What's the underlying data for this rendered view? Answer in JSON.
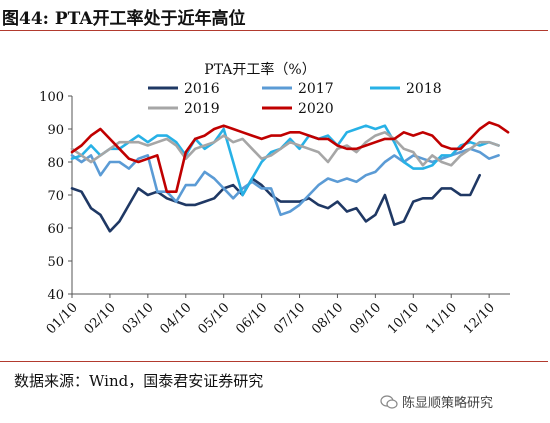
{
  "figure_title": "图44: PTA开工率处于近年高位",
  "source_note": "数据来源：Wind，国泰君安证券研究",
  "watermark": "陈显顺策略研究",
  "colors": {
    "accent_rule": "#b23a2e"
  },
  "chart_data": {
    "type": "line",
    "title": "PTA开工率（%）",
    "xlabel": "",
    "ylabel": "",
    "ylim": [
      40,
      100
    ],
    "yticks": [
      40,
      50,
      60,
      70,
      80,
      90,
      100
    ],
    "x_ticks": [
      "01/10",
      "02/10",
      "03/10",
      "04/10",
      "05/10",
      "06/10",
      "07/10",
      "08/10",
      "09/10",
      "10/10",
      "11/10",
      "12/10"
    ],
    "grid": false,
    "legend_position": "top",
    "series": [
      {
        "name": "2016",
        "color": "#1f3864",
        "values": [
          [
            0,
            72
          ],
          [
            0.25,
            71
          ],
          [
            0.5,
            66
          ],
          [
            0.75,
            64
          ],
          [
            1,
            59
          ],
          [
            1.25,
            62
          ],
          [
            1.5,
            67
          ],
          [
            1.75,
            72
          ],
          [
            2,
            70
          ],
          [
            2.25,
            71
          ],
          [
            2.5,
            69
          ],
          [
            2.75,
            68
          ],
          [
            3,
            67
          ],
          [
            3.25,
            67
          ],
          [
            3.5,
            68
          ],
          [
            3.75,
            69
          ],
          [
            4,
            72
          ],
          [
            4.25,
            73
          ],
          [
            4.5,
            70
          ],
          [
            4.75,
            75
          ],
          [
            5,
            73
          ],
          [
            5.25,
            70
          ],
          [
            5.5,
            68
          ],
          [
            5.75,
            68
          ],
          [
            6,
            68
          ],
          [
            6.25,
            69
          ],
          [
            6.5,
            67
          ],
          [
            6.75,
            66
          ],
          [
            7,
            68
          ],
          [
            7.25,
            65
          ],
          [
            7.5,
            66
          ],
          [
            7.75,
            62
          ],
          [
            8,
            64
          ],
          [
            8.25,
            70
          ],
          [
            8.5,
            61
          ],
          [
            8.75,
            62
          ],
          [
            9,
            68
          ],
          [
            9.25,
            69
          ],
          [
            9.5,
            69
          ],
          [
            9.75,
            72
          ],
          [
            10,
            72
          ],
          [
            10.25,
            70
          ],
          [
            10.5,
            70
          ],
          [
            10.75,
            76
          ]
        ]
      },
      {
        "name": "2017",
        "color": "#5b9bd5",
        "values": [
          [
            0,
            82
          ],
          [
            0.25,
            80
          ],
          [
            0.5,
            82
          ],
          [
            0.75,
            76
          ],
          [
            1,
            80
          ],
          [
            1.25,
            80
          ],
          [
            1.5,
            78
          ],
          [
            1.75,
            81
          ],
          [
            2,
            82
          ],
          [
            2.25,
            71
          ],
          [
            2.5,
            71
          ],
          [
            2.75,
            68
          ],
          [
            3,
            73
          ],
          [
            3.25,
            73
          ],
          [
            3.5,
            77
          ],
          [
            3.75,
            75
          ],
          [
            4,
            72
          ],
          [
            4.25,
            69
          ],
          [
            4.5,
            72
          ],
          [
            4.75,
            74
          ],
          [
            5,
            72
          ],
          [
            5.25,
            72
          ],
          [
            5.5,
            64
          ],
          [
            5.75,
            65
          ],
          [
            6,
            67
          ],
          [
            6.25,
            70
          ],
          [
            6.5,
            73
          ],
          [
            6.75,
            75
          ],
          [
            7,
            74
          ],
          [
            7.25,
            75
          ],
          [
            7.5,
            74
          ],
          [
            7.75,
            76
          ],
          [
            8,
            77
          ],
          [
            8.25,
            80
          ],
          [
            8.5,
            82
          ],
          [
            8.75,
            80
          ],
          [
            9,
            82
          ],
          [
            9.25,
            81
          ],
          [
            9.5,
            80
          ],
          [
            9.75,
            81
          ],
          [
            10,
            82
          ],
          [
            10.25,
            83
          ],
          [
            10.5,
            84
          ],
          [
            10.75,
            83
          ],
          [
            11,
            81
          ],
          [
            11.25,
            82
          ]
        ]
      },
      {
        "name": "2018",
        "color": "#27b1e6",
        "values": [
          [
            0,
            81
          ],
          [
            0.25,
            82
          ],
          [
            0.5,
            85
          ],
          [
            0.75,
            82
          ],
          [
            1,
            84
          ],
          [
            1.25,
            84
          ],
          [
            1.5,
            86
          ],
          [
            1.75,
            88
          ],
          [
            2,
            86
          ],
          [
            2.25,
            88
          ],
          [
            2.5,
            88
          ],
          [
            2.75,
            86
          ],
          [
            3,
            82
          ],
          [
            3.25,
            87
          ],
          [
            3.5,
            84
          ],
          [
            3.75,
            86
          ],
          [
            4,
            90
          ],
          [
            4.25,
            80
          ],
          [
            4.5,
            70
          ],
          [
            4.75,
            75
          ],
          [
            5,
            80
          ],
          [
            5.25,
            83
          ],
          [
            5.5,
            84
          ],
          [
            5.75,
            87
          ],
          [
            6,
            84
          ],
          [
            6.25,
            88
          ],
          [
            6.5,
            87
          ],
          [
            6.75,
            88
          ],
          [
            7,
            85
          ],
          [
            7.25,
            89
          ],
          [
            7.5,
            90
          ],
          [
            7.75,
            91
          ],
          [
            8,
            90
          ],
          [
            8.25,
            91
          ],
          [
            8.5,
            86
          ],
          [
            8.75,
            80
          ],
          [
            9,
            78
          ],
          [
            9.25,
            78
          ],
          [
            9.5,
            79
          ],
          [
            9.75,
            82
          ],
          [
            10,
            82
          ],
          [
            10.25,
            85
          ],
          [
            10.5,
            86
          ],
          [
            10.75,
            85
          ],
          [
            11,
            86
          ],
          [
            11.25,
            85
          ]
        ]
      },
      {
        "name": "2019",
        "color": "#a6a6a6",
        "values": [
          [
            0,
            84
          ],
          [
            0.25,
            82
          ],
          [
            0.5,
            80
          ],
          [
            0.75,
            82
          ],
          [
            1,
            84
          ],
          [
            1.25,
            86
          ],
          [
            1.5,
            86
          ],
          [
            1.75,
            86
          ],
          [
            2,
            85
          ],
          [
            2.25,
            86
          ],
          [
            2.5,
            87
          ],
          [
            2.75,
            85
          ],
          [
            3,
            81
          ],
          [
            3.25,
            84
          ],
          [
            3.5,
            85
          ],
          [
            3.75,
            86
          ],
          [
            4,
            88
          ],
          [
            4.25,
            86
          ],
          [
            4.5,
            87
          ],
          [
            4.75,
            84
          ],
          [
            5,
            81
          ],
          [
            5.25,
            82
          ],
          [
            5.5,
            84
          ],
          [
            5.75,
            86
          ],
          [
            6,
            85
          ],
          [
            6.25,
            84
          ],
          [
            6.5,
            83
          ],
          [
            6.75,
            80
          ],
          [
            7,
            84
          ],
          [
            7.25,
            85
          ],
          [
            7.5,
            83
          ],
          [
            7.75,
            86
          ],
          [
            8,
            88
          ],
          [
            8.25,
            89
          ],
          [
            8.5,
            87
          ],
          [
            8.75,
            84
          ],
          [
            9,
            83
          ],
          [
            9.25,
            79
          ],
          [
            9.5,
            82
          ],
          [
            9.75,
            80
          ],
          [
            10,
            79
          ],
          [
            10.25,
            82
          ],
          [
            10.5,
            84
          ],
          [
            10.75,
            86
          ],
          [
            11,
            86
          ],
          [
            11.25,
            85
          ]
        ]
      },
      {
        "name": "2020",
        "color": "#c00000",
        "values": [
          [
            0,
            83
          ],
          [
            0.25,
            85
          ],
          [
            0.5,
            88
          ],
          [
            0.75,
            90
          ],
          [
            1,
            87
          ],
          [
            1.25,
            84
          ],
          [
            1.5,
            81
          ],
          [
            1.75,
            80
          ],
          [
            2,
            81
          ],
          [
            2.25,
            82
          ],
          [
            2.5,
            71
          ],
          [
            2.75,
            71
          ],
          [
            3,
            83
          ],
          [
            3.25,
            87
          ],
          [
            3.5,
            88
          ],
          [
            3.75,
            90
          ],
          [
            4,
            91
          ],
          [
            4.25,
            90
          ],
          [
            4.5,
            89
          ],
          [
            4.75,
            88
          ],
          [
            5,
            87
          ],
          [
            5.25,
            88
          ],
          [
            5.5,
            88
          ],
          [
            5.75,
            89
          ],
          [
            6,
            89
          ],
          [
            6.25,
            88
          ],
          [
            6.5,
            87
          ],
          [
            6.75,
            87
          ],
          [
            7,
            85
          ],
          [
            7.25,
            84
          ],
          [
            7.5,
            84
          ],
          [
            7.75,
            85
          ],
          [
            8,
            86
          ],
          [
            8.25,
            87
          ],
          [
            8.5,
            87
          ],
          [
            8.75,
            89
          ],
          [
            9,
            88
          ],
          [
            9.25,
            89
          ],
          [
            9.5,
            88
          ],
          [
            9.75,
            85
          ],
          [
            10,
            84
          ],
          [
            10.25,
            84
          ],
          [
            10.5,
            87
          ],
          [
            10.75,
            90
          ],
          [
            11,
            92
          ],
          [
            11.25,
            91
          ],
          [
            11.5,
            89
          ]
        ]
      }
    ]
  }
}
